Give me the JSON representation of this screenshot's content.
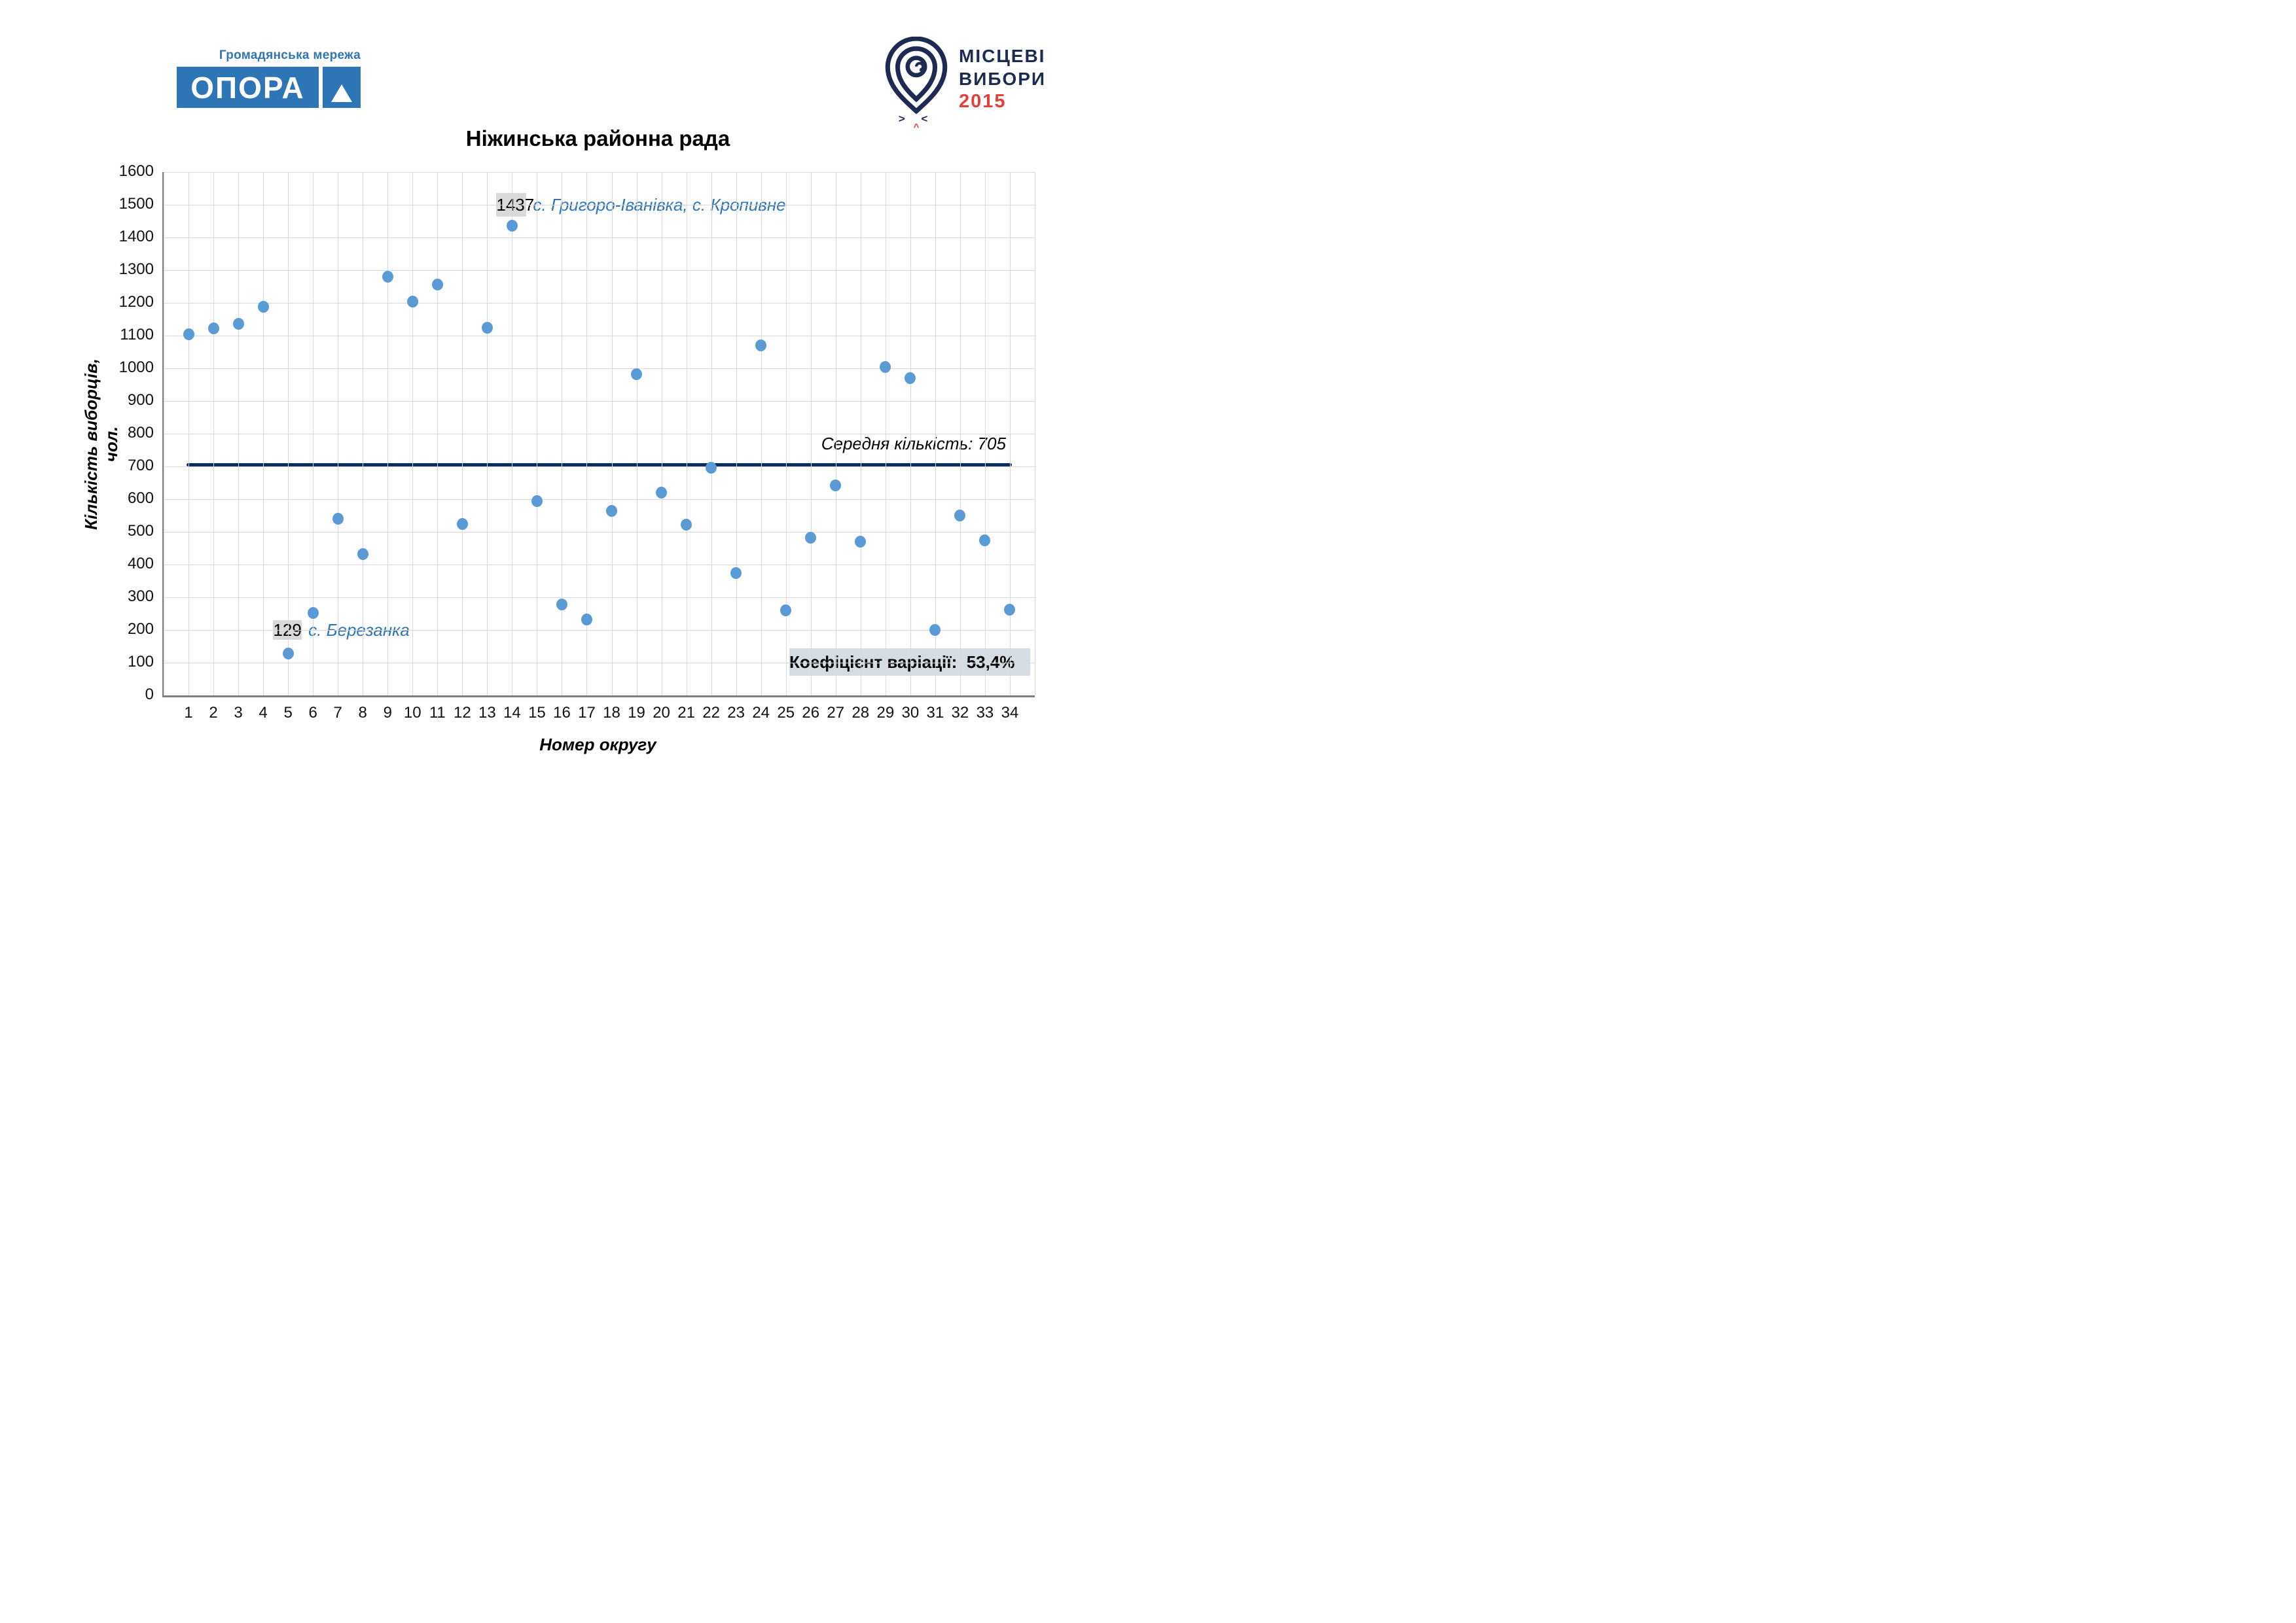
{
  "page_background": "#ffffff",
  "logos": {
    "opora": {
      "subtitle": "Громадянська мережа",
      "wordmark": "ОПОРА",
      "brand_color": "#2e75b6",
      "triangle_icon": "white-triangle"
    },
    "local_elections": {
      "line1": "МІСЦЕВІ",
      "line2": "ВИБОРИ",
      "year": "2015",
      "navy_color": "#1d2b52",
      "red_color": "#e4403a",
      "pin_icon": "spiral-location-pin",
      "chevrons": "> <",
      "chevron_red": "^"
    }
  },
  "chart_data": {
    "type": "scatter",
    "title": "Ніжинська районна рада",
    "xlabel": "Номер округу",
    "ylabel": "Кількість виборців, чол.",
    "categories": [
      1,
      2,
      3,
      4,
      5,
      6,
      7,
      8,
      9,
      10,
      11,
      12,
      13,
      14,
      15,
      16,
      17,
      18,
      19,
      20,
      21,
      22,
      23,
      24,
      25,
      26,
      27,
      28,
      29,
      30,
      31,
      32,
      33,
      34
    ],
    "values": [
      1105,
      1123,
      1137,
      1188,
      129,
      253,
      540,
      432,
      1280,
      1205,
      1256,
      524,
      1125,
      1437,
      595,
      278,
      232,
      565,
      982,
      620,
      523,
      696,
      374,
      1071,
      261,
      483,
      642,
      471,
      1004,
      970,
      200,
      550,
      474,
      263
    ],
    "ylim": [
      0,
      1600
    ],
    "y_tick_step": 100,
    "grid": true,
    "legend": "none",
    "point_color": "#5b9bd5",
    "gridline_color": "#d9d9d9",
    "average_line": {
      "value": 705,
      "label": "Середня кількість: 705",
      "color": "#0e2a63"
    },
    "annotations": {
      "max": {
        "district": 14,
        "value_label": "1437",
        "text": "с. Григоро-Іванівка, с. Кропивне"
      },
      "min": {
        "district": 5,
        "value_label": "129",
        "text": "с. Березанка"
      }
    },
    "stat_box": {
      "label": "Коефіцієнт варіації:  53,4%"
    }
  }
}
